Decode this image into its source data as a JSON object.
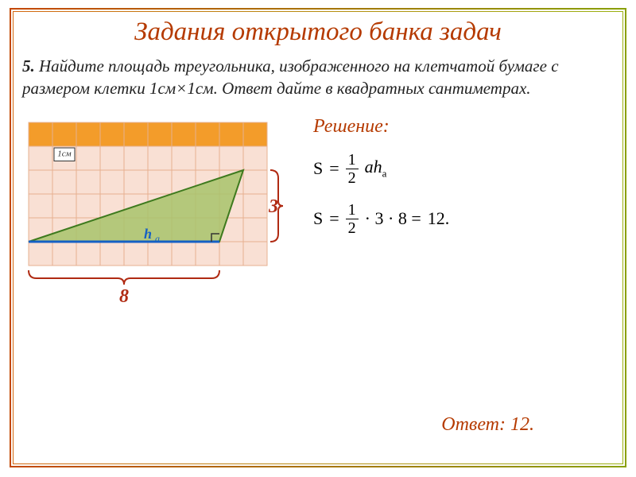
{
  "title": {
    "text": "Задания открытого банка задач",
    "color": "#b53a00",
    "fontsize": 33
  },
  "problem": {
    "number": "5.",
    "text": "Найдите площадь треугольника, изображенного на клетчатой бумаге с размером клетки 1см×1см. Ответ дайте в квадратных сантиметрах.",
    "fontsize": 21
  },
  "diagram": {
    "grid": {
      "cols": 10,
      "rows": 6,
      "cell": 30,
      "fill_top": "#f39c2a",
      "fill_body": "#f9e0d4",
      "grid_line": "#e6b090"
    },
    "cell_label": "1см",
    "triangle": {
      "points": [
        [
          0,
          5
        ],
        [
          8,
          5
        ],
        [
          9,
          2
        ]
      ],
      "fill": "#a8c36b",
      "stroke": "#3e7a1e"
    },
    "base_line": {
      "from": [
        0,
        5
      ],
      "to": [
        8,
        5
      ],
      "color": "#1560c4",
      "width": 3
    },
    "height_mark": {
      "at": [
        8,
        5
      ],
      "size": 10,
      "color": "#333"
    },
    "h_label": {
      "text": "h",
      "sub": "a",
      "color": "#1560c4"
    },
    "base_brace": {
      "label": "8",
      "color": "#b02a12",
      "fontsize": 24
    },
    "side_brace": {
      "label": "3",
      "color": "#b02a12",
      "fontsize": 24
    }
  },
  "solution": {
    "label": "Решение:",
    "label_color": "#b53a00",
    "f1": {
      "lhs": "S",
      "eq": "=",
      "frac_n": "1",
      "frac_d": "2",
      "rhs": "ah",
      "sub": "a"
    },
    "f2": {
      "lhs": "S",
      "eq": "=",
      "frac_n": "1",
      "frac_d": "2",
      "mid1": "· 3 · 8 =",
      "result": "12."
    }
  },
  "answer": {
    "label": "Ответ:",
    "value": "12.",
    "color": "#b53a00"
  }
}
